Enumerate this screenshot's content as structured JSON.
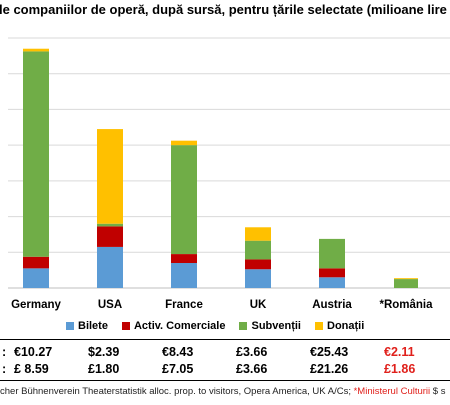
{
  "title": "le companiilor de operă, după sursă, pentru țările selectate (milioane lire",
  "colors": {
    "Bilete": "#5b9bd5",
    "Activ. Comerciale": "#c00000",
    "Subvenții": "#70ad47",
    "Donații": "#ffc000",
    "grid": "#d9d9d9",
    "highlight": "#e0201b"
  },
  "chart_data": {
    "type": "bar",
    "stacked": true,
    "title": "",
    "categories": [
      "Germany",
      "USA",
      "France",
      "UK",
      "Austria",
      "*România"
    ],
    "series": [
      {
        "name": "Bilete",
        "values": [
          22,
          46,
          28,
          21,
          12,
          0
        ]
      },
      {
        "name": "Activ. Comerciale",
        "values": [
          13,
          23,
          10,
          11,
          10,
          0
        ]
      },
      {
        "name": "Subvenții",
        "values": [
          230,
          3,
          122,
          21,
          33,
          10
        ]
      },
      {
        "name": "Donații",
        "values": [
          3,
          106,
          5,
          15,
          0,
          1
        ]
      }
    ],
    "ylim": [
      0,
      280
    ],
    "grid": true,
    "legend": "bottom"
  },
  "table": {
    "rows": [
      {
        "label": ":",
        "values": [
          "€10.27",
          "$2.39",
          "€8.43",
          "£3.66",
          "€25.43",
          "€2.11"
        ]
      },
      {
        "label": ":",
        "values": [
          "£ 8.59",
          "£1.80",
          "£7.05",
          "£3.66",
          "£21.26",
          "£1.86"
        ]
      }
    ],
    "highlight_last": true
  },
  "source": {
    "text": "cher Bühnenverein Theaterstatistik alloc. prop. to visitors, Opera America, UK A/Cs; ",
    "highlight": "*Ministerul Culturii",
    "tail": " $ s"
  }
}
